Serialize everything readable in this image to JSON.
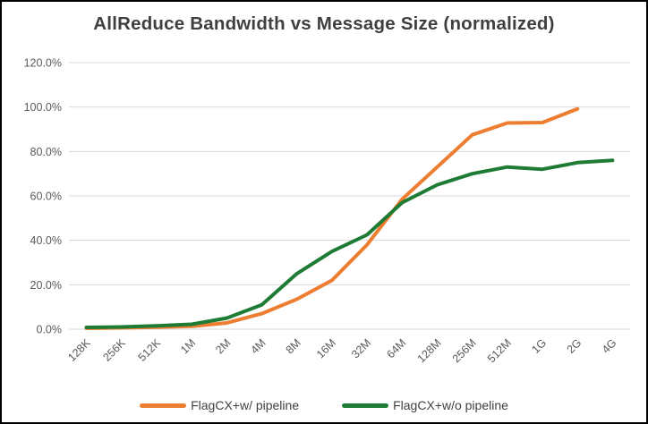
{
  "chart_data": {
    "type": "line",
    "title": "AllReduce Bandwidth vs Message Size (normalized)",
    "xlabel": "",
    "ylabel": "",
    "categories": [
      "128K",
      "256K",
      "512K",
      "1M",
      "2M",
      "4M",
      "8M",
      "16M",
      "32M",
      "64M",
      "128M",
      "256M",
      "512M",
      "1G",
      "2G",
      "4G"
    ],
    "series": [
      {
        "name": "FlagCX+w/ pipeline",
        "color": "#ED7D31",
        "values": [
          0.4,
          0.6,
          0.9,
          1.3,
          2.8,
          7.0,
          13.5,
          22.0,
          38.0,
          58.5,
          73.0,
          87.5,
          92.8,
          93.0,
          99.2,
          null
        ]
      },
      {
        "name": "FlagCX+w/o pipeline",
        "color": "#1E7B34",
        "values": [
          0.8,
          1.0,
          1.5,
          2.2,
          5.0,
          11.0,
          25.0,
          35.0,
          42.5,
          57.0,
          65.0,
          70.0,
          73.0,
          72.0,
          75.0,
          76.0
        ]
      }
    ],
    "y_ticks": [
      "0.0%",
      "20.0%",
      "40.0%",
      "60.0%",
      "80.0%",
      "100.0%",
      "120.0%"
    ],
    "ylim": [
      0,
      120
    ],
    "y_tick_step": 20,
    "grid": true,
    "legend_position": "bottom"
  },
  "colors": {
    "gridline": "#D9D9D9",
    "axis_text": "#595959",
    "title_text": "#3f3f3f",
    "frame_border": "#000000",
    "background": "#FFFFFF"
  }
}
